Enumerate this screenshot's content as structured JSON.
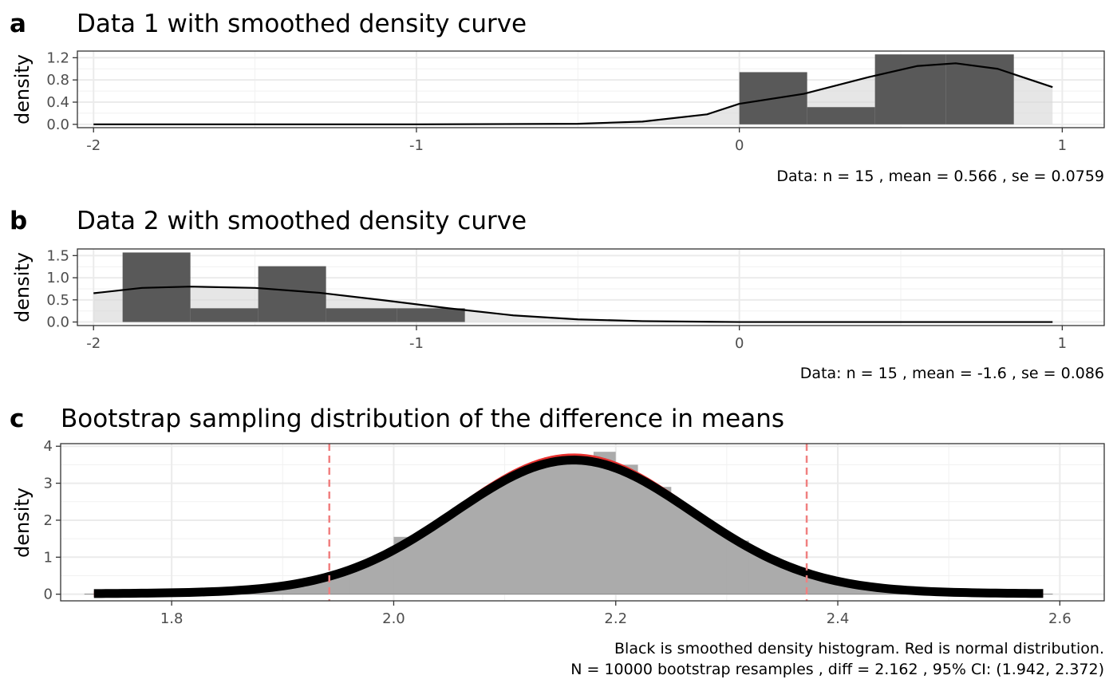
{
  "chart_data": [
    {
      "type": "histogram",
      "tag": "a",
      "title": "Data 1 with smoothed density curve",
      "ylabel": "density",
      "xlim": [
        -2.05,
        1.13
      ],
      "ylim": [
        -0.06,
        1.32
      ],
      "xticks": [
        -2,
        -1,
        0,
        1
      ],
      "yticks": [
        0.0,
        0.4,
        0.8,
        1.2
      ],
      "ytick_labels": [
        "0.0",
        "0.4",
        "0.8",
        "1.2"
      ],
      "bins": [
        {
          "x0": 0.0,
          "x1": 0.21,
          "y": 0.94
        },
        {
          "x0": 0.21,
          "x1": 0.42,
          "y": 0.31
        },
        {
          "x0": 0.42,
          "x1": 0.64,
          "y": 1.26
        },
        {
          "x0": 0.64,
          "x1": 0.85,
          "y": 1.26
        }
      ],
      "density_curve": {
        "x": [
          -2.0,
          -1.0,
          -0.5,
          -0.3,
          -0.1,
          0.0,
          0.2,
          0.4,
          0.55,
          0.67,
          0.8,
          0.97
        ],
        "y": [
          0.0,
          0.0,
          0.01,
          0.05,
          0.18,
          0.37,
          0.55,
          0.85,
          1.05,
          1.1,
          1.0,
          0.67
        ]
      },
      "caption": [
        "Data: n = 15 ,  mean = 0.566 ,  se = 0.0759"
      ]
    },
    {
      "type": "histogram",
      "tag": "b",
      "title": "Data 2 with smoothed density curve",
      "ylabel": "density",
      "xlim": [
        -2.05,
        1.13
      ],
      "ylim": [
        -0.08,
        1.65
      ],
      "xticks": [
        -2,
        -1,
        0,
        1
      ],
      "yticks": [
        0.0,
        0.5,
        1.0,
        1.5
      ],
      "ytick_labels": [
        "0.0",
        "0.5",
        "1.0",
        "1.5"
      ],
      "bins": [
        {
          "x0": -1.91,
          "x1": -1.7,
          "y": 1.57
        },
        {
          "x0": -1.7,
          "x1": -1.49,
          "y": 0.31
        },
        {
          "x0": -1.49,
          "x1": -1.28,
          "y": 1.26
        },
        {
          "x0": -1.28,
          "x1": -1.06,
          "y": 0.31
        },
        {
          "x0": -1.06,
          "x1": -0.85,
          "y": 0.31
        }
      ],
      "density_curve": {
        "x": [
          -2.0,
          -1.85,
          -1.7,
          -1.5,
          -1.3,
          -1.1,
          -0.9,
          -0.7,
          -0.5,
          -0.3,
          0.0,
          0.5,
          0.97
        ],
        "y": [
          0.65,
          0.77,
          0.8,
          0.77,
          0.66,
          0.49,
          0.31,
          0.15,
          0.06,
          0.02,
          0.0,
          0.0,
          0.0
        ]
      },
      "caption": [
        "Data: n = 15 ,  mean = -1.6 ,  se = 0.086"
      ]
    },
    {
      "type": "histogram",
      "tag": "c",
      "title": "Bootstrap sampling distribution of the difference in means",
      "ylabel": "density",
      "xlim": [
        1.7,
        2.64
      ],
      "ylim": [
        -0.18,
        4.07
      ],
      "xticks": [
        1.8,
        2.0,
        2.2,
        2.4,
        2.6
      ],
      "xtick_labels": [
        "1.8",
        "2.0",
        "2.2",
        "2.4",
        "2.6"
      ],
      "yticks": [
        0,
        1,
        2,
        3,
        4
      ],
      "ytick_labels": [
        "0",
        "1",
        "2",
        "3",
        "4"
      ],
      "hist_range": [
        1.73,
        2.585
      ],
      "normal_mean": 2.162,
      "normal_sd": 0.107,
      "ci": [
        1.942,
        2.372
      ],
      "bin_deviations": [
        {
          "x0": 1.94,
          "x1": 1.96,
          "y": 0.45
        },
        {
          "x0": 2.0,
          "x1": 2.02,
          "y": 1.55
        },
        {
          "x0": 2.18,
          "x1": 2.2,
          "y": 3.85
        },
        {
          "x0": 2.2,
          "x1": 2.22,
          "y": 3.5
        },
        {
          "x0": 2.22,
          "x1": 2.25,
          "y": 2.9
        },
        {
          "x0": 2.3,
          "x1": 2.32,
          "y": 1.45
        }
      ],
      "colors": {
        "normal": "#e8302e",
        "ci": "#f08080",
        "smooth": "#000000",
        "hist": "#ababab"
      },
      "caption": [
        "Black is smoothed density histogram.  Red is normal distribution.",
        "N = 10000 bootstrap resamples ,  diff = 2.162 ,  95% CI: (1.942, 2.372)"
      ]
    }
  ]
}
